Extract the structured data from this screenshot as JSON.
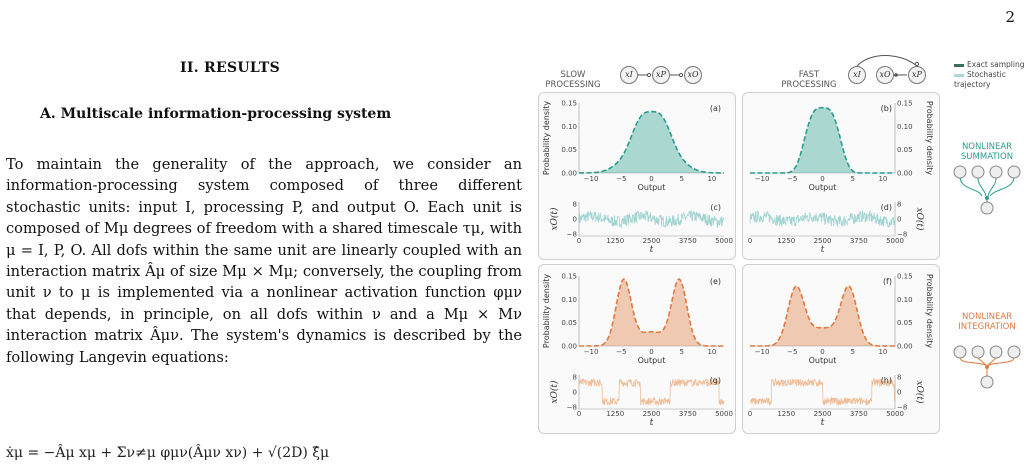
{
  "page_number": "2",
  "section_heading": "II.   RESULTS",
  "subsection_heading": "A.   Multiscale information-processing system",
  "paragraph": "To maintain the generality of the approach, we consider an information-processing system composed of three different stochastic units: input I, processing P, and output O. Each unit is composed of Mμ degrees of freedom with a shared timescale τμ, with μ = I, P, O. All dofs within the same unit are linearly coupled with an interaction matrix Âμ of size Mμ × Mμ; conversely, the coupling from unit ν to μ is implemented via a nonlinear activation function φμν that depends, in principle, on all dofs within ν and a Mμ × Mν interaction matrix Âμν. The system's dynamics is described by the following Langevin equations:",
  "equation_fragment": "ẋμ = −Âμ xμ + Σν≠μ φμν(Âμν xν) + √(2D) ξ̂μ",
  "figure": {
    "slow_label": "SLOW\nPROCESSING",
    "fast_label": "FAST\nPROCESSING",
    "nodes": {
      "input": "xI",
      "processing": "xP",
      "output": "xO"
    },
    "legend": [
      {
        "label": "Exact sampling",
        "color": "#3a6b5e"
      },
      {
        "label": "Stochastic trajectory",
        "color": "#a9d9d6"
      }
    ],
    "summation_label": "NONLINEAR\nSUMMATION",
    "integration_label": "NONLINEAR\nINTEGRATION",
    "summation_color": "#2a9d8f",
    "integration_color": "#e07a3f",
    "density_ylabel": "Probability density",
    "density_xlabel": "Output",
    "traj_ylabel": "xO(t)",
    "traj_xlabel": "t",
    "panel_letters": [
      "(a)",
      "(b)",
      "(c)",
      "(d)",
      "(e)",
      "(f)",
      "(g)",
      "(h)"
    ],
    "density_yticks": [
      "0.00",
      "0.05",
      "0.10",
      "0.15"
    ],
    "density_xticks": [
      "−10",
      "−5",
      "0",
      "5",
      "10"
    ],
    "traj_xticks": [
      "0",
      "1250",
      "2500",
      "3750",
      "5000"
    ],
    "traj_yticks": [
      "8",
      "0",
      "−8"
    ]
  },
  "chart_data": [
    {
      "type": "area",
      "panel": "(a)",
      "shape": "unimodal",
      "x": [
        -10,
        -5,
        0,
        5,
        10
      ],
      "y": [
        0.0,
        0.045,
        0.14,
        0.045,
        0.0
      ],
      "ylim": [
        0,
        0.15
      ],
      "xlim": [
        -12,
        12
      ],
      "color": "#2a9d8f"
    },
    {
      "type": "area",
      "panel": "(b)",
      "shape": "unimodal",
      "x": [
        -10,
        -5,
        0,
        5,
        10
      ],
      "y": [
        0.0,
        0.035,
        0.14,
        0.035,
        0.0
      ],
      "ylim": [
        0,
        0.15
      ],
      "xlim": [
        -12,
        12
      ],
      "color": "#2a9d8f"
    },
    {
      "type": "area",
      "panel": "(e)",
      "shape": "bimodal",
      "x": [
        -10,
        -5,
        0,
        5,
        10
      ],
      "y": [
        0.0,
        0.14,
        0.03,
        0.14,
        0.0
      ],
      "ylim": [
        0,
        0.15
      ],
      "xlim": [
        -12,
        12
      ],
      "color": "#e07a3f"
    },
    {
      "type": "area",
      "panel": "(f)",
      "shape": "bimodal",
      "x": [
        -10,
        -5,
        0,
        5,
        10
      ],
      "y": [
        0.0,
        0.12,
        0.04,
        0.12,
        0.0
      ],
      "ylim": [
        0,
        0.15
      ],
      "xlim": [
        -12,
        12
      ],
      "color": "#e07a3f"
    }
  ]
}
